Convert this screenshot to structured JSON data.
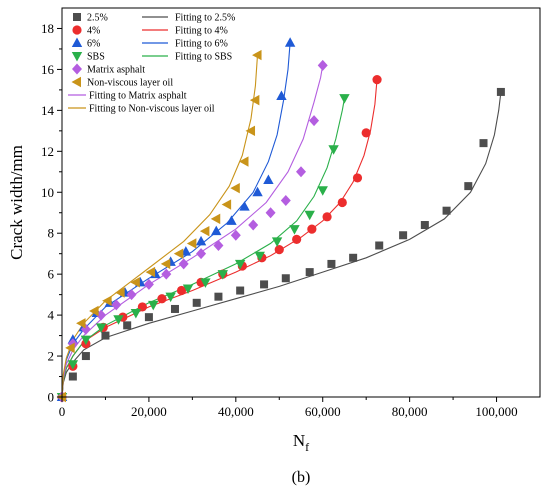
{
  "chart_data": {
    "type": "scatter",
    "xlabel": "N",
    "xlabel_sub": "f",
    "ylabel": "Crack width/mm",
    "xlim": [
      0,
      110000
    ],
    "ylim": [
      0,
      19
    ],
    "xticks": [
      0,
      20000,
      40000,
      60000,
      80000,
      100000
    ],
    "xtick_labels": [
      "0",
      "20,000",
      "40,000",
      "60,000",
      "80,000",
      "100,000"
    ],
    "yticks": [
      0,
      2,
      4,
      6,
      8,
      10,
      12,
      14,
      16,
      18
    ],
    "ytick_labels": [
      "0",
      "2",
      "4",
      "6",
      "8",
      "10",
      "12",
      "14",
      "16",
      "18"
    ],
    "legend_position": "top-left",
    "series": [
      {
        "name": "2.5%",
        "marker": "square",
        "color": "#4d4d4d",
        "fit_name": "Fitting to 2.5%",
        "x": [
          0,
          2500,
          5500,
          10000,
          15000,
          20000,
          26000,
          31000,
          36000,
          41000,
          46500,
          51500,
          57000,
          62000,
          67000,
          73000,
          78500,
          83500,
          88500,
          93500,
          97000,
          101000
        ],
        "y": [
          0,
          1.0,
          2.0,
          3.0,
          3.5,
          3.9,
          4.3,
          4.6,
          4.9,
          5.2,
          5.5,
          5.8,
          6.1,
          6.5,
          6.8,
          7.4,
          7.9,
          8.4,
          9.1,
          10.3,
          12.4,
          14.9
        ],
        "fit": {
          "x": [
            0,
            300,
            1000,
            2500,
            5000,
            10000,
            20000,
            30000,
            40000,
            50000,
            60000,
            70000,
            80000,
            88000,
            94000,
            97500,
            99500,
            100500,
            101000
          ],
          "y": [
            0,
            0.7,
            1.2,
            1.7,
            2.3,
            2.9,
            3.6,
            4.2,
            4.8,
            5.4,
            6.1,
            6.8,
            7.7,
            8.7,
            10.0,
            11.4,
            12.8,
            14.0,
            14.9
          ]
        }
      },
      {
        "name": "4%",
        "marker": "circle",
        "color": "#ec2d2d",
        "fit_name": "Fitting to 4%",
        "x": [
          0,
          2500,
          5500,
          9500,
          14000,
          18500,
          23000,
          27500,
          32000,
          37000,
          41500,
          46000,
          50000,
          54000,
          57500,
          61000,
          64500,
          68000,
          70000,
          72500
        ],
        "y": [
          0,
          1.5,
          2.6,
          3.4,
          3.9,
          4.4,
          4.8,
          5.2,
          5.6,
          6.0,
          6.4,
          6.8,
          7.2,
          7.7,
          8.2,
          8.8,
          9.5,
          10.7,
          12.9,
          15.5
        ],
        "fit": {
          "x": [
            0,
            300,
            1000,
            2500,
            5000,
            10000,
            20000,
            30000,
            40000,
            48000,
            55000,
            60000,
            64000,
            67000,
            69500,
            71000,
            72000,
            72500
          ],
          "y": [
            0,
            0.8,
            1.4,
            2.0,
            2.7,
            3.4,
            4.4,
            5.2,
            6.1,
            6.9,
            7.8,
            8.6,
            9.5,
            10.5,
            11.8,
            13.0,
            14.3,
            15.5
          ]
        }
      },
      {
        "name": "6%",
        "marker": "triangle-up",
        "color": "#1f5ad6",
        "fit_name": "Fitting to 6%",
        "x": [
          0,
          2500,
          5000,
          8000,
          11000,
          14500,
          18000,
          21500,
          25000,
          28500,
          32000,
          35500,
          39000,
          42000,
          45000,
          47500,
          50500,
          52500
        ],
        "y": [
          0,
          2.8,
          3.4,
          4.1,
          4.6,
          5.1,
          5.6,
          6.0,
          6.6,
          7.1,
          7.6,
          8.1,
          8.6,
          9.3,
          10.0,
          10.6,
          14.7,
          17.3
        ],
        "fit": {
          "x": [
            0,
            300,
            1000,
            2500,
            5000,
            10000,
            20000,
            30000,
            38000,
            44000,
            47500,
            49500,
            51000,
            52000,
            52500
          ],
          "y": [
            0,
            1.0,
            1.8,
            2.6,
            3.3,
            4.4,
            5.8,
            7.1,
            8.5,
            10.0,
            11.5,
            12.8,
            14.5,
            16.0,
            17.3
          ]
        }
      },
      {
        "name": "SBS",
        "marker": "triangle-down",
        "color": "#2ab04a",
        "fit_name": "Fitting to SBS",
        "x": [
          0,
          2500,
          5500,
          9000,
          13000,
          17000,
          21000,
          25000,
          29000,
          33000,
          37000,
          41000,
          45500,
          49500,
          53500,
          57000,
          60000,
          62500,
          65000
        ],
        "y": [
          0,
          1.6,
          2.8,
          3.4,
          3.8,
          4.1,
          4.5,
          4.9,
          5.3,
          5.6,
          6.0,
          6.5,
          6.9,
          7.6,
          8.2,
          8.9,
          10.1,
          12.1,
          14.6
        ],
        "fit": {
          "x": [
            0,
            300,
            1000,
            2500,
            5000,
            10000,
            20000,
            30000,
            40000,
            48000,
            54000,
            58000,
            61000,
            63000,
            64500,
            65000
          ],
          "y": [
            0,
            0.8,
            1.4,
            2.0,
            2.7,
            3.5,
            4.6,
            5.5,
            6.5,
            7.5,
            8.6,
            9.8,
            11.2,
            12.6,
            14.0,
            14.6
          ]
        }
      },
      {
        "name": "Matrix asphalt",
        "marker": "diamond",
        "color": "#b45ee0",
        "fit_name": "Fitting to Matrix asphalt",
        "x": [
          0,
          2500,
          5500,
          9000,
          12500,
          16000,
          20000,
          24000,
          28000,
          32000,
          36000,
          40000,
          44000,
          48000,
          51500,
          55000,
          58000,
          60000
        ],
        "y": [
          0,
          2.6,
          3.3,
          4.0,
          4.5,
          5.0,
          5.5,
          6.0,
          6.5,
          7.0,
          7.4,
          7.9,
          8.4,
          9.0,
          9.6,
          11.0,
          13.5,
          16.2
        ],
        "fit": {
          "x": [
            0,
            300,
            1000,
            2500,
            5000,
            10000,
            20000,
            30000,
            40000,
            47000,
            52000,
            55500,
            58000,
            59500,
            60000
          ],
          "y": [
            0,
            0.9,
            1.6,
            2.3,
            3.0,
            4.0,
            5.5,
            6.8,
            8.2,
            9.5,
            11.0,
            12.6,
            14.4,
            15.6,
            16.2
          ]
        }
      },
      {
        "name": "Non-viscous layer oil",
        "marker": "triangle-left",
        "color": "#c9941a",
        "fit_name": "Fitting to Non-viscous layer oil",
        "x": [
          0,
          2000,
          4500,
          7500,
          10500,
          13500,
          17000,
          20500,
          24000,
          27000,
          30000,
          33000,
          35500,
          38000,
          40000,
          42000,
          43500,
          44500,
          45000
        ],
        "y": [
          0,
          2.4,
          3.6,
          4.2,
          4.7,
          5.1,
          5.6,
          6.1,
          6.5,
          7.0,
          7.5,
          8.1,
          8.7,
          9.4,
          10.2,
          11.5,
          13.0,
          14.5,
          16.7
        ],
        "fit": {
          "x": [
            0,
            300,
            1000,
            2500,
            5000,
            10000,
            20000,
            28000,
            34000,
            38500,
            41500,
            43500,
            44500,
            45000
          ],
          "y": [
            0,
            1.1,
            1.9,
            2.8,
            3.6,
            4.7,
            6.3,
            7.6,
            8.9,
            10.3,
            11.8,
            13.6,
            15.2,
            16.7
          ]
        }
      }
    ]
  },
  "caption": "(b)"
}
